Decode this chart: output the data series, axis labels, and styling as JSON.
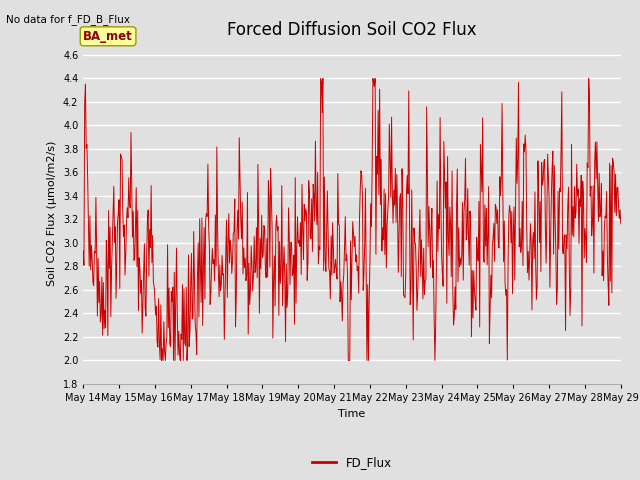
{
  "title": "Forced Diffusion Soil CO2 Flux",
  "xlabel": "Time",
  "ylabel": "Soil CO2 Flux (μmol/m2/s)",
  "no_data_label": "No data for f_FD_B_Flux",
  "legend_label": "FD_Flux",
  "ba_met_label": "BA_met",
  "ylim": [
    1.8,
    4.7
  ],
  "yticks": [
    1.8,
    2.0,
    2.2,
    2.4,
    2.6,
    2.8,
    3.0,
    3.2,
    3.4,
    3.6,
    3.8,
    4.0,
    4.2,
    4.4,
    4.6
  ],
  "line_color": "#cc0000",
  "background_color": "#e0e0e0",
  "plot_bg_color": "#e0e0e0",
  "grid_color": "white",
  "ba_met_bg": "#ffff99",
  "ba_met_border": "#999900",
  "title_fontsize": 12,
  "label_fontsize": 8,
  "tick_fontsize": 7,
  "xtick_days": [
    14,
    15,
    16,
    17,
    18,
    19,
    20,
    21,
    22,
    23,
    24,
    25,
    26,
    27,
    28,
    29
  ],
  "seed": 42
}
